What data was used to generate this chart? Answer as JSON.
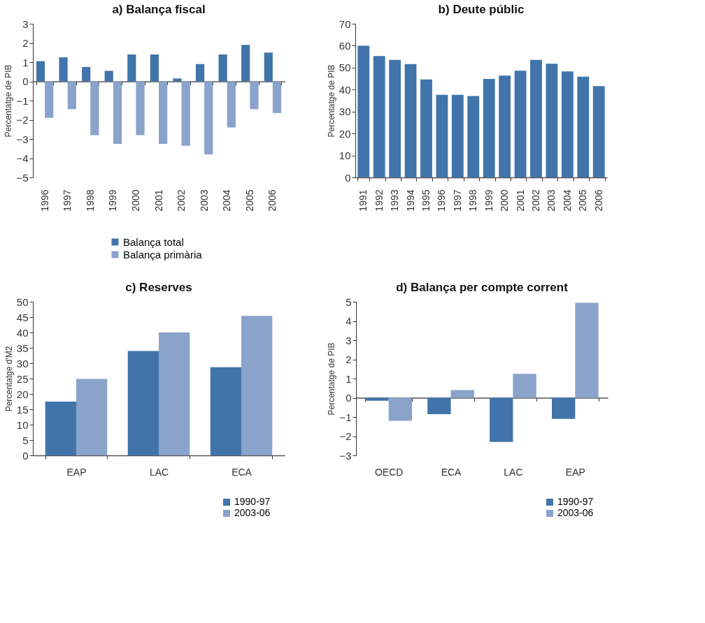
{
  "chart_data": [
    {
      "type": "bar",
      "title": "a) Balança fiscal",
      "ylabel": "Percentatge de PIB",
      "categories": [
        "1996",
        "1997",
        "1998",
        "1999",
        "2000",
        "2001",
        "2002",
        "2003",
        "2004",
        "2005",
        "2006"
      ],
      "series": [
        {
          "name": "Balança total",
          "color": "#4174aa",
          "values": [
            1.05,
            1.25,
            0.75,
            0.55,
            1.4,
            1.4,
            0.15,
            0.9,
            1.4,
            1.9,
            1.5
          ]
        },
        {
          "name": "Balança primària",
          "color": "#8aa3ca",
          "values": [
            -1.9,
            -1.45,
            -2.8,
            -3.25,
            -2.8,
            -3.25,
            -3.35,
            -3.8,
            -2.4,
            -1.45,
            -1.65
          ]
        }
      ],
      "ylim": [
        -5,
        3
      ],
      "yticks": [
        -5,
        -4,
        -3,
        -2,
        -1,
        0,
        1,
        2,
        3
      ],
      "legend": "bottom"
    },
    {
      "type": "bar",
      "title": "b) Deute públic",
      "ylabel": "Percentatge de PIB",
      "categories": [
        "1991",
        "1992",
        "1993",
        "1994",
        "1995",
        "1996",
        "1997",
        "1998",
        "1999",
        "2000",
        "2001",
        "2002",
        "2003",
        "2004",
        "2005",
        "2006"
      ],
      "series": [
        {
          "color": "#4174aa",
          "values": [
            60,
            55.3,
            53.5,
            51.6,
            44.6,
            37.6,
            37.6,
            37.1,
            44.9,
            46.4,
            48.6,
            53.5,
            51.8,
            48.3,
            45.9,
            41.6
          ]
        }
      ],
      "ylim": [
        0,
        70
      ],
      "yticks": [
        0,
        10,
        20,
        30,
        40,
        50,
        60,
        70
      ],
      "grid": false
    },
    {
      "type": "bar",
      "title": "c) Reserves",
      "ylabel": "Percentatge d'M2",
      "categories": [
        "EAP",
        "LAC",
        "ECA"
      ],
      "series": [
        {
          "name": "1990-97",
          "color": "#4174aa",
          "values": [
            17.5,
            34,
            28.7
          ]
        },
        {
          "name": "2003-06",
          "color": "#8aa3ca",
          "values": [
            24.9,
            40,
            45.4
          ]
        }
      ],
      "ylim": [
        0,
        50
      ],
      "yticks": [
        0,
        5,
        10,
        15,
        20,
        25,
        30,
        35,
        40,
        45,
        50
      ],
      "legend": "bottom right",
      "grid": false
    },
    {
      "type": "bar",
      "title": "d) Balança per compte corrent",
      "ylabel": "Percentatge de PIB",
      "categories": [
        "OECD",
        "ECA",
        "LAC",
        "EAP"
      ],
      "series": [
        {
          "name": "1990-97",
          "color": "#4174aa",
          "values": [
            -0.15,
            -0.85,
            -2.3,
            -1.1
          ]
        },
        {
          "name": "2003-06",
          "color": "#8aa3ca",
          "values": [
            -1.2,
            0.4,
            1.25,
            4.95
          ]
        }
      ],
      "ylim": [
        -3,
        5
      ],
      "yticks": [
        -3,
        -2,
        -1,
        0,
        1,
        2,
        3,
        4,
        5
      ],
      "legend": "bottom right"
    }
  ]
}
